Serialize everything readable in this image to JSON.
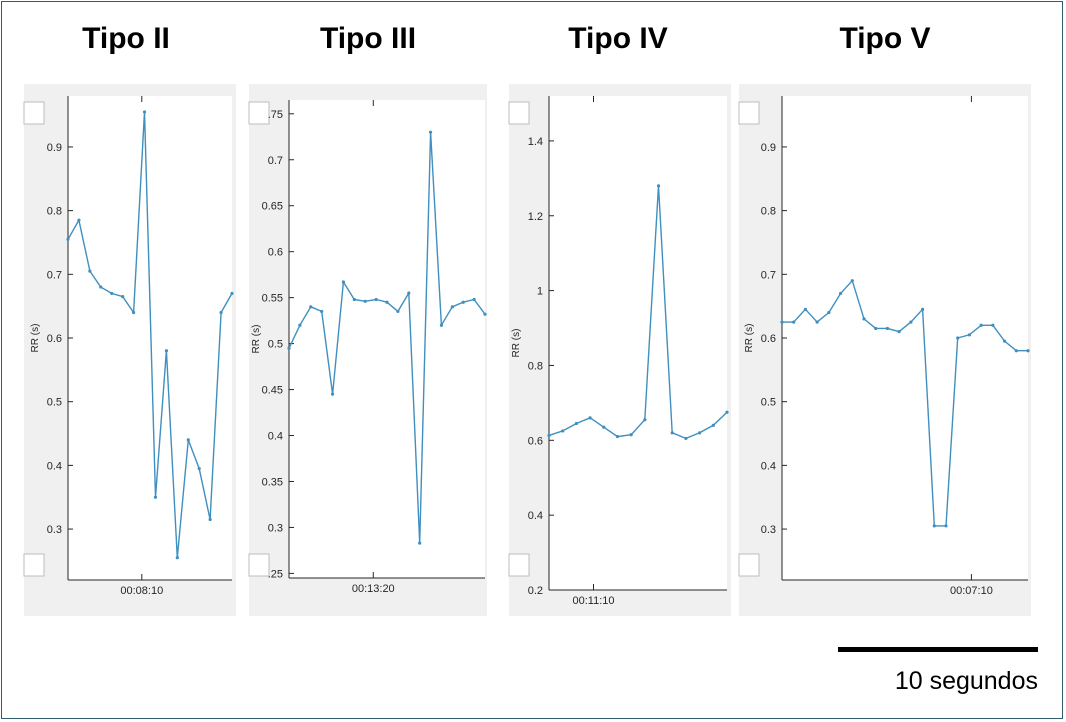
{
  "panels": [
    {
      "title": "Tipo II"
    },
    {
      "title": "Tipo III"
    },
    {
      "title": "Tipo IV"
    },
    {
      "title": "Tipo V"
    }
  ],
  "scale_bar": {
    "label": "10 segundos"
  },
  "chart_data": [
    {
      "type": "line",
      "title": "Tipo II",
      "ylabel": "RR (s)",
      "xtick_label": "00:08:10",
      "ylim": [
        0.22,
        0.98
      ],
      "yticks": [
        "0.9",
        "0.8",
        "0.7",
        "0.6",
        "0.5",
        "0.4",
        "0.3"
      ],
      "y": [
        0.755,
        0.785,
        0.705,
        0.68,
        0.67,
        0.665,
        0.64,
        0.955,
        0.35,
        0.58,
        0.255,
        0.44,
        0.395,
        0.315,
        0.64,
        0.67
      ],
      "color": "#3f8fbf"
    },
    {
      "type": "line",
      "title": "Tipo III",
      "ylabel": "RR (s)",
      "xtick_label": "00:13:20",
      "ylim": [
        0.245,
        0.765
      ],
      "yticks": [
        ".75",
        "0.7",
        "0.65",
        "0.6",
        "0.55",
        "0.5",
        "0.45",
        "0.4",
        "0.35",
        "0.3",
        ".25"
      ],
      "y": [
        0.495,
        0.52,
        0.54,
        0.535,
        0.445,
        0.567,
        0.548,
        0.546,
        0.548,
        0.545,
        0.535,
        0.555,
        0.283,
        0.73,
        0.52,
        0.54,
        0.545,
        0.548,
        0.532
      ],
      "color": "#3f8fbf"
    },
    {
      "type": "line",
      "title": "Tipo IV",
      "ylabel": "RR (s)",
      "xtick_label": "00:11:10",
      "ylim": [
        0.2,
        1.52
      ],
      "yticks": [
        "1.4",
        "1.2",
        "1",
        "0.8",
        "0.6",
        "0.4",
        "0.2"
      ],
      "y": [
        0.613,
        0.625,
        0.645,
        0.66,
        0.635,
        0.61,
        0.615,
        0.655,
        1.28,
        0.62,
        0.605,
        0.62,
        0.64,
        0.675
      ],
      "color": "#3f8fbf"
    },
    {
      "type": "line",
      "title": "Tipo V",
      "ylabel": "RR (s)",
      "xtick_label": "00:07:10",
      "ylim": [
        0.22,
        0.98
      ],
      "yticks": [
        "0.9",
        "0.8",
        "0.7",
        "0.6",
        "0.5",
        "0.4",
        "0.3"
      ],
      "y": [
        0.625,
        0.625,
        0.645,
        0.625,
        0.64,
        0.67,
        0.69,
        0.63,
        0.615,
        0.615,
        0.61,
        0.625,
        0.645,
        0.305,
        0.305,
        0.6,
        0.605,
        0.62,
        0.62,
        0.595,
        0.58,
        0.58
      ],
      "color": "#3f8fbf"
    }
  ]
}
